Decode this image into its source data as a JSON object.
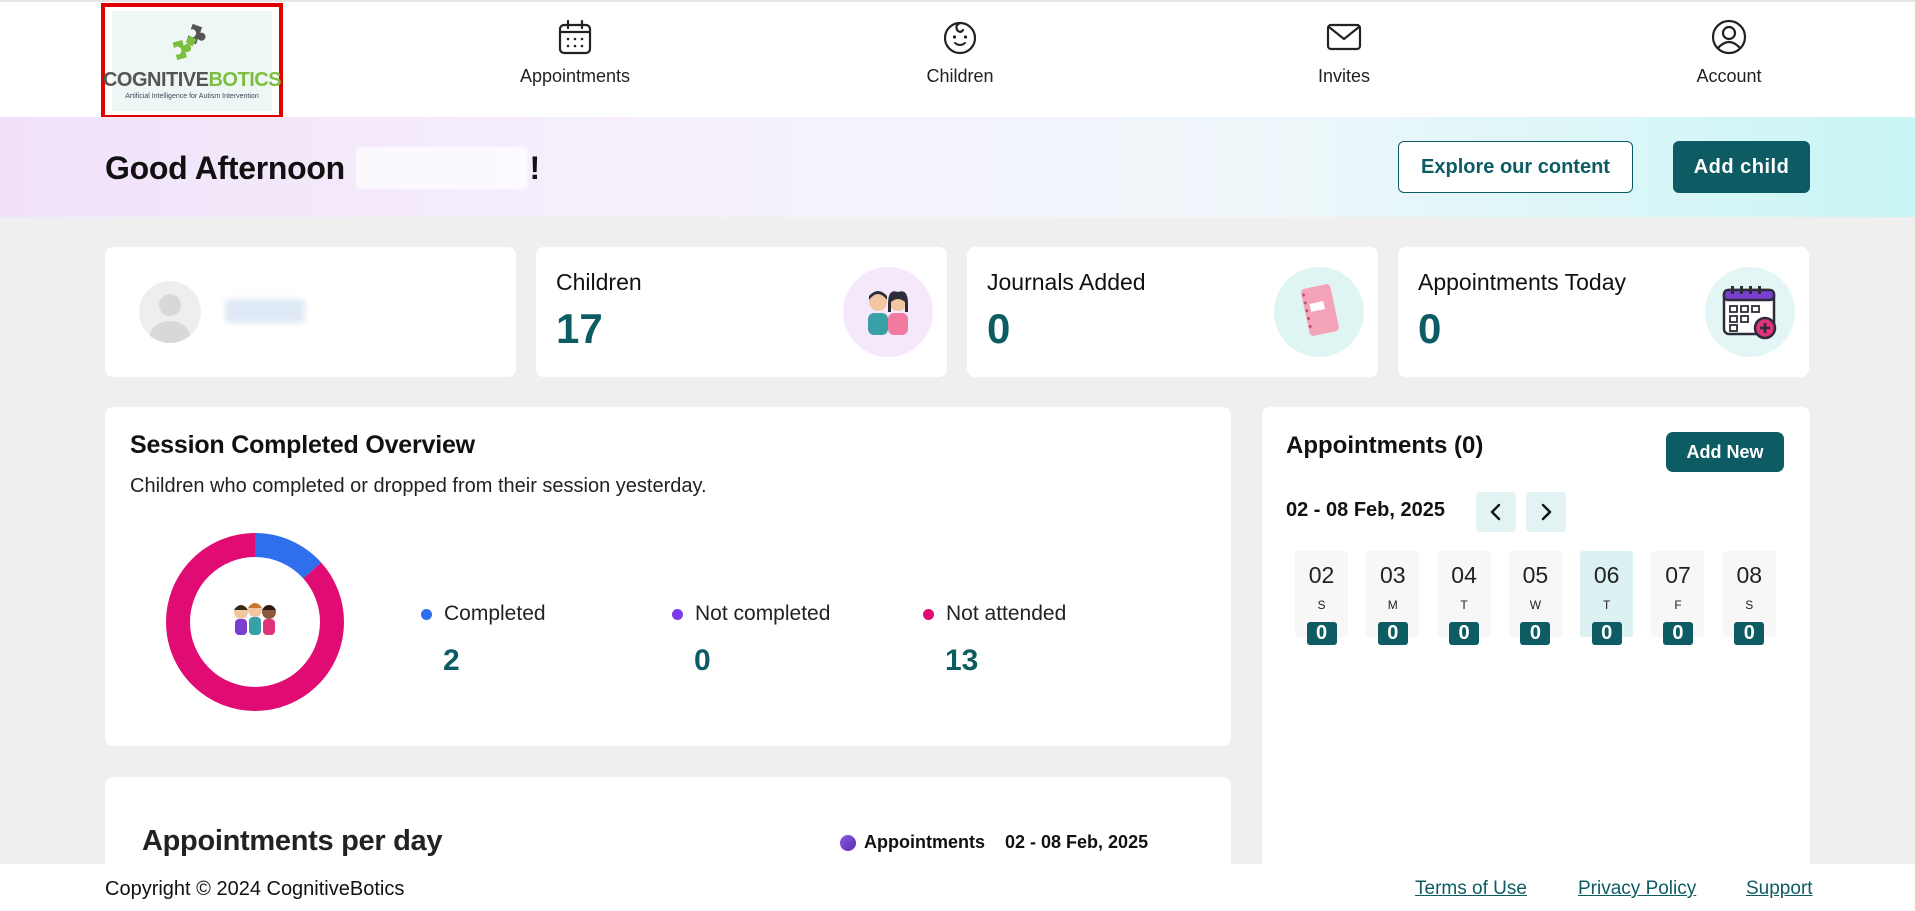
{
  "nav": {
    "logo_brand_a": "COGNITIVE",
    "logo_brand_b": "BOTICS",
    "logo_tagline": "Artificial Intelligence for Autism Intervention",
    "items": [
      {
        "label": "Appointments",
        "icon": "calendar-icon"
      },
      {
        "label": "Children",
        "icon": "baby-face-icon"
      },
      {
        "label": "Invites",
        "icon": "envelope-icon"
      },
      {
        "label": "Account",
        "icon": "user-circle-icon"
      }
    ]
  },
  "banner": {
    "greeting": "Good Afternoon",
    "exclaim": "!",
    "explore_label": "Explore our content",
    "add_child_label": "Add child"
  },
  "stats": [
    {
      "label": "Children",
      "value": "17",
      "icon": "children-icon"
    },
    {
      "label": "Journals Added",
      "value": "0",
      "icon": "notebook-icon"
    },
    {
      "label": "Appointments Today",
      "value": "0",
      "icon": "calendar-plus-icon"
    }
  ],
  "session": {
    "title": "Session Completed Overview",
    "subtitle": "Children who completed or dropped from their session yesterday.",
    "legend": [
      {
        "label": "Completed",
        "value": "2",
        "color": "#2f6fed"
      },
      {
        "label": "Not completed",
        "value": "0",
        "color": "#7c3aed"
      },
      {
        "label": "Not attended",
        "value": "13",
        "color": "#e00b73"
      }
    ]
  },
  "chart_data": {
    "type": "pie",
    "categories": [
      "Completed",
      "Not completed",
      "Not attended"
    ],
    "values": [
      2,
      0,
      13
    ],
    "colors": [
      "#2f6fed",
      "#7c3aed",
      "#e00b73"
    ],
    "donut": true
  },
  "apd": {
    "title": "Appointments per day",
    "legend_label": "Appointments",
    "range": "02 - 08 Feb, 2025"
  },
  "appointments": {
    "title": "Appointments (0)",
    "add_new_label": "Add New",
    "range": "02 - 08 Feb, 2025",
    "days": [
      {
        "date": "02",
        "weekday": "S",
        "count": "0",
        "active": false
      },
      {
        "date": "03",
        "weekday": "M",
        "count": "0",
        "active": false
      },
      {
        "date": "04",
        "weekday": "T",
        "count": "0",
        "active": false
      },
      {
        "date": "05",
        "weekday": "W",
        "count": "0",
        "active": false
      },
      {
        "date": "06",
        "weekday": "T",
        "count": "0",
        "active": true
      },
      {
        "date": "07",
        "weekday": "F",
        "count": "0",
        "active": false
      },
      {
        "date": "08",
        "weekday": "S",
        "count": "0",
        "active": false
      }
    ]
  },
  "footer": {
    "copyright": "Copyright © 2024 CognitiveBotics",
    "terms": "Terms of Use",
    "privacy": "Privacy Policy",
    "support": "Support"
  },
  "colors": {
    "primary": "#0d5c63",
    "highlight_border": "#e00000"
  }
}
